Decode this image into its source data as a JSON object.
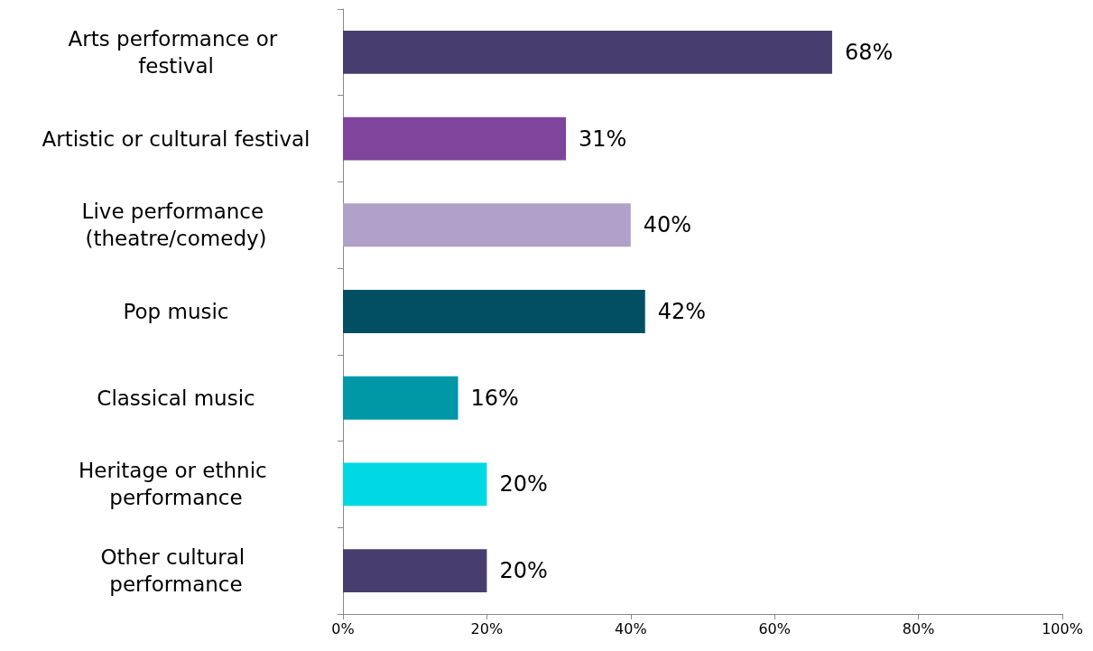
{
  "chart_data": {
    "type": "bar",
    "orientation": "horizontal",
    "categories": [
      "Arts performance or festival",
      "Artistic or cultural festival",
      "Live performance (theatre/comedy)",
      "Pop music",
      "Classical music",
      "Heritage or ethnic performance",
      "Other cultural performance"
    ],
    "values": [
      68,
      31,
      40,
      42,
      16,
      20,
      20
    ],
    "colors": [
      "#473e6f",
      "#7f449c",
      "#b1a0c8",
      "#024f63",
      "#0097a7",
      "#00d8e3",
      "#473e6f"
    ],
    "value_labels": [
      "68%",
      "31%",
      "40%",
      "42%",
      "16%",
      "20%",
      "20%"
    ],
    "xlim": [
      0,
      100
    ],
    "xticks": [
      {
        "value": 0,
        "label": "0%"
      },
      {
        "value": 20,
        "label": "20%"
      },
      {
        "value": 40,
        "label": "40%"
      },
      {
        "value": 60,
        "label": "60%"
      },
      {
        "value": 80,
        "label": "80%"
      },
      {
        "value": 100,
        "label": "100%"
      }
    ],
    "grid": false
  }
}
